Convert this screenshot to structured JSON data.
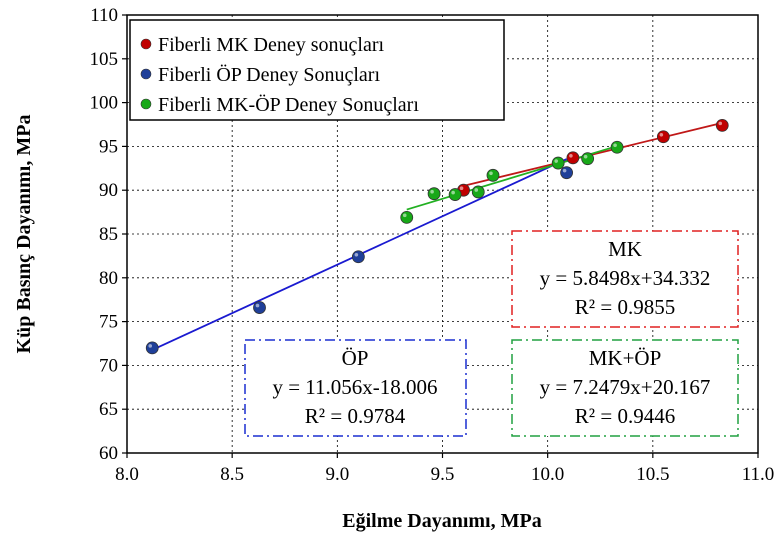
{
  "chart_data": {
    "type": "scatter",
    "xlabel": "Eğilme Dayanımı, MPa",
    "ylabel": "Küp Basınç Dayanımı, MPa",
    "xlim": [
      8.0,
      11.0
    ],
    "ylim": [
      60,
      110
    ],
    "xticks": [
      "8.0",
      "8.5",
      "9.0",
      "9.5",
      "10.0",
      "10.5",
      "11.0"
    ],
    "yticks": [
      "60",
      "65",
      "70",
      "75",
      "80",
      "85",
      "90",
      "95",
      "100",
      "105",
      "110"
    ],
    "grid": true,
    "legend_position": "top-left",
    "series": [
      {
        "name": "Fiberli MK Deney sonuçları",
        "color": "#c00000",
        "points": [
          [
            9.6,
            90.0
          ],
          [
            10.12,
            93.7
          ],
          [
            10.55,
            96.1
          ],
          [
            10.83,
            97.4
          ]
        ],
        "fit": {
          "slope": 5.8498,
          "intercept": 34.332,
          "x_range": [
            9.6,
            10.83
          ]
        }
      },
      {
        "name": "Fiberli ÖP Deney Sonuçları",
        "color": "#1f3f99",
        "points": [
          [
            8.12,
            72.0
          ],
          [
            8.63,
            76.6
          ],
          [
            9.1,
            82.4
          ],
          [
            10.09,
            92.0
          ]
        ],
        "fit": {
          "slope": 11.056,
          "intercept": -18.006,
          "x_range": [
            8.12,
            10.09
          ]
        }
      },
      {
        "name": "Fiberli MK-ÖP Deney Sonuçları",
        "color": "#18a818",
        "points": [
          [
            9.33,
            86.9
          ],
          [
            9.46,
            89.6
          ],
          [
            9.56,
            89.5
          ],
          [
            9.67,
            89.8
          ],
          [
            9.74,
            91.7
          ],
          [
            10.05,
            93.1
          ],
          [
            10.19,
            93.6
          ],
          [
            10.33,
            94.9
          ]
        ],
        "fit": {
          "slope": 7.2479,
          "intercept": 20.167,
          "x_range": [
            9.33,
            10.33
          ]
        }
      }
    ],
    "annotations": [
      {
        "key": "mk",
        "title": "MK",
        "equation": "y = 5.8498x+34.332",
        "r2": "R² = 0.9855",
        "color": "#e02020"
      },
      {
        "key": "op",
        "title": "ÖP",
        "equation": "y = 11.056x-18.006",
        "r2": "R² = 0.9784",
        "color": "#1a2fd0"
      },
      {
        "key": "mkop",
        "title": "MK+ÖP",
        "equation": "y = 7.2479x+20.167",
        "r2": "R² = 0.9446",
        "color": "#20a040"
      }
    ]
  }
}
